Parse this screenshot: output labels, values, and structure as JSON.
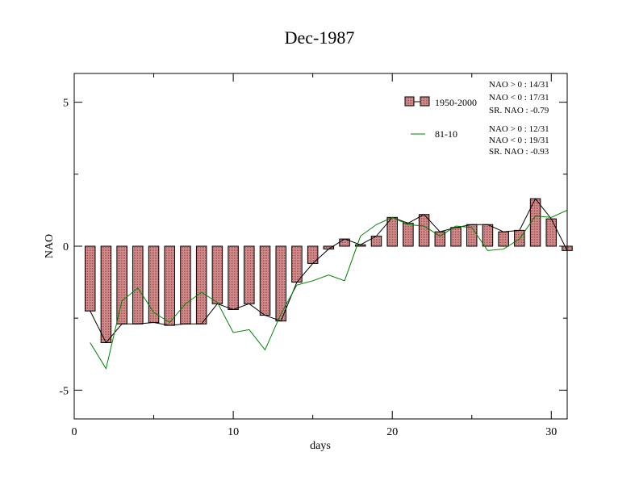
{
  "chart_data": {
    "type": "bar",
    "title": "Dec-1987",
    "xlabel": "days",
    "ylabel": "NAO",
    "xlim": [
      0,
      31
    ],
    "ylim": [
      -6,
      6
    ],
    "x_ticks": [
      0,
      10,
      20,
      30
    ],
    "x_tick_labels": [
      "0",
      "10",
      "20",
      "30"
    ],
    "y_ticks": [
      -5,
      0,
      5
    ],
    "y_tick_labels": [
      "-5",
      "0",
      "5"
    ],
    "grid": false,
    "legend_position": "top-right",
    "x": [
      1,
      2,
      3,
      4,
      5,
      6,
      7,
      8,
      9,
      10,
      11,
      12,
      13,
      14,
      15,
      16,
      17,
      18,
      19,
      20,
      21,
      22,
      23,
      24,
      25,
      26,
      27,
      28,
      29,
      30,
      31
    ],
    "series": [
      {
        "name": "1950-2000",
        "kind": "bar",
        "fill": "#f08080",
        "values": [
          -2.25,
          -3.35,
          -2.7,
          -2.7,
          -2.65,
          -2.75,
          -2.7,
          -2.7,
          -2.0,
          -2.2,
          -2.0,
          -2.4,
          -2.6,
          -1.25,
          -0.6,
          -0.1,
          0.25,
          0.05,
          0.35,
          1.0,
          0.8,
          1.1,
          0.5,
          0.65,
          0.75,
          0.75,
          0.5,
          0.55,
          1.65,
          0.95,
          -0.15
        ]
      },
      {
        "name": "81-10",
        "kind": "line",
        "color": "#008000",
        "values": [
          -3.35,
          -4.25,
          -1.9,
          -1.45,
          -2.3,
          -2.65,
          -2.0,
          -1.6,
          -1.95,
          -3.0,
          -2.9,
          -3.6,
          -2.35,
          -1.35,
          -1.2,
          -1.0,
          -1.2,
          0.35,
          0.75,
          1.0,
          0.75,
          0.7,
          0.35,
          0.7,
          0.65,
          -0.15,
          -0.1,
          0.25,
          1.05,
          1.0,
          1.25
        ]
      }
    ],
    "legend": {
      "bar_label": "1950-2000",
      "line_label": "81-10"
    },
    "stats": {
      "group1": [
        "NAO > 0 : 14/31",
        "NAO < 0 : 17/31",
        "SR. NAO : -0.79"
      ],
      "group2": [
        "NAO > 0 : 12/31",
        "NAO < 0 : 19/31",
        "SR. NAO : -0.93"
      ]
    }
  }
}
